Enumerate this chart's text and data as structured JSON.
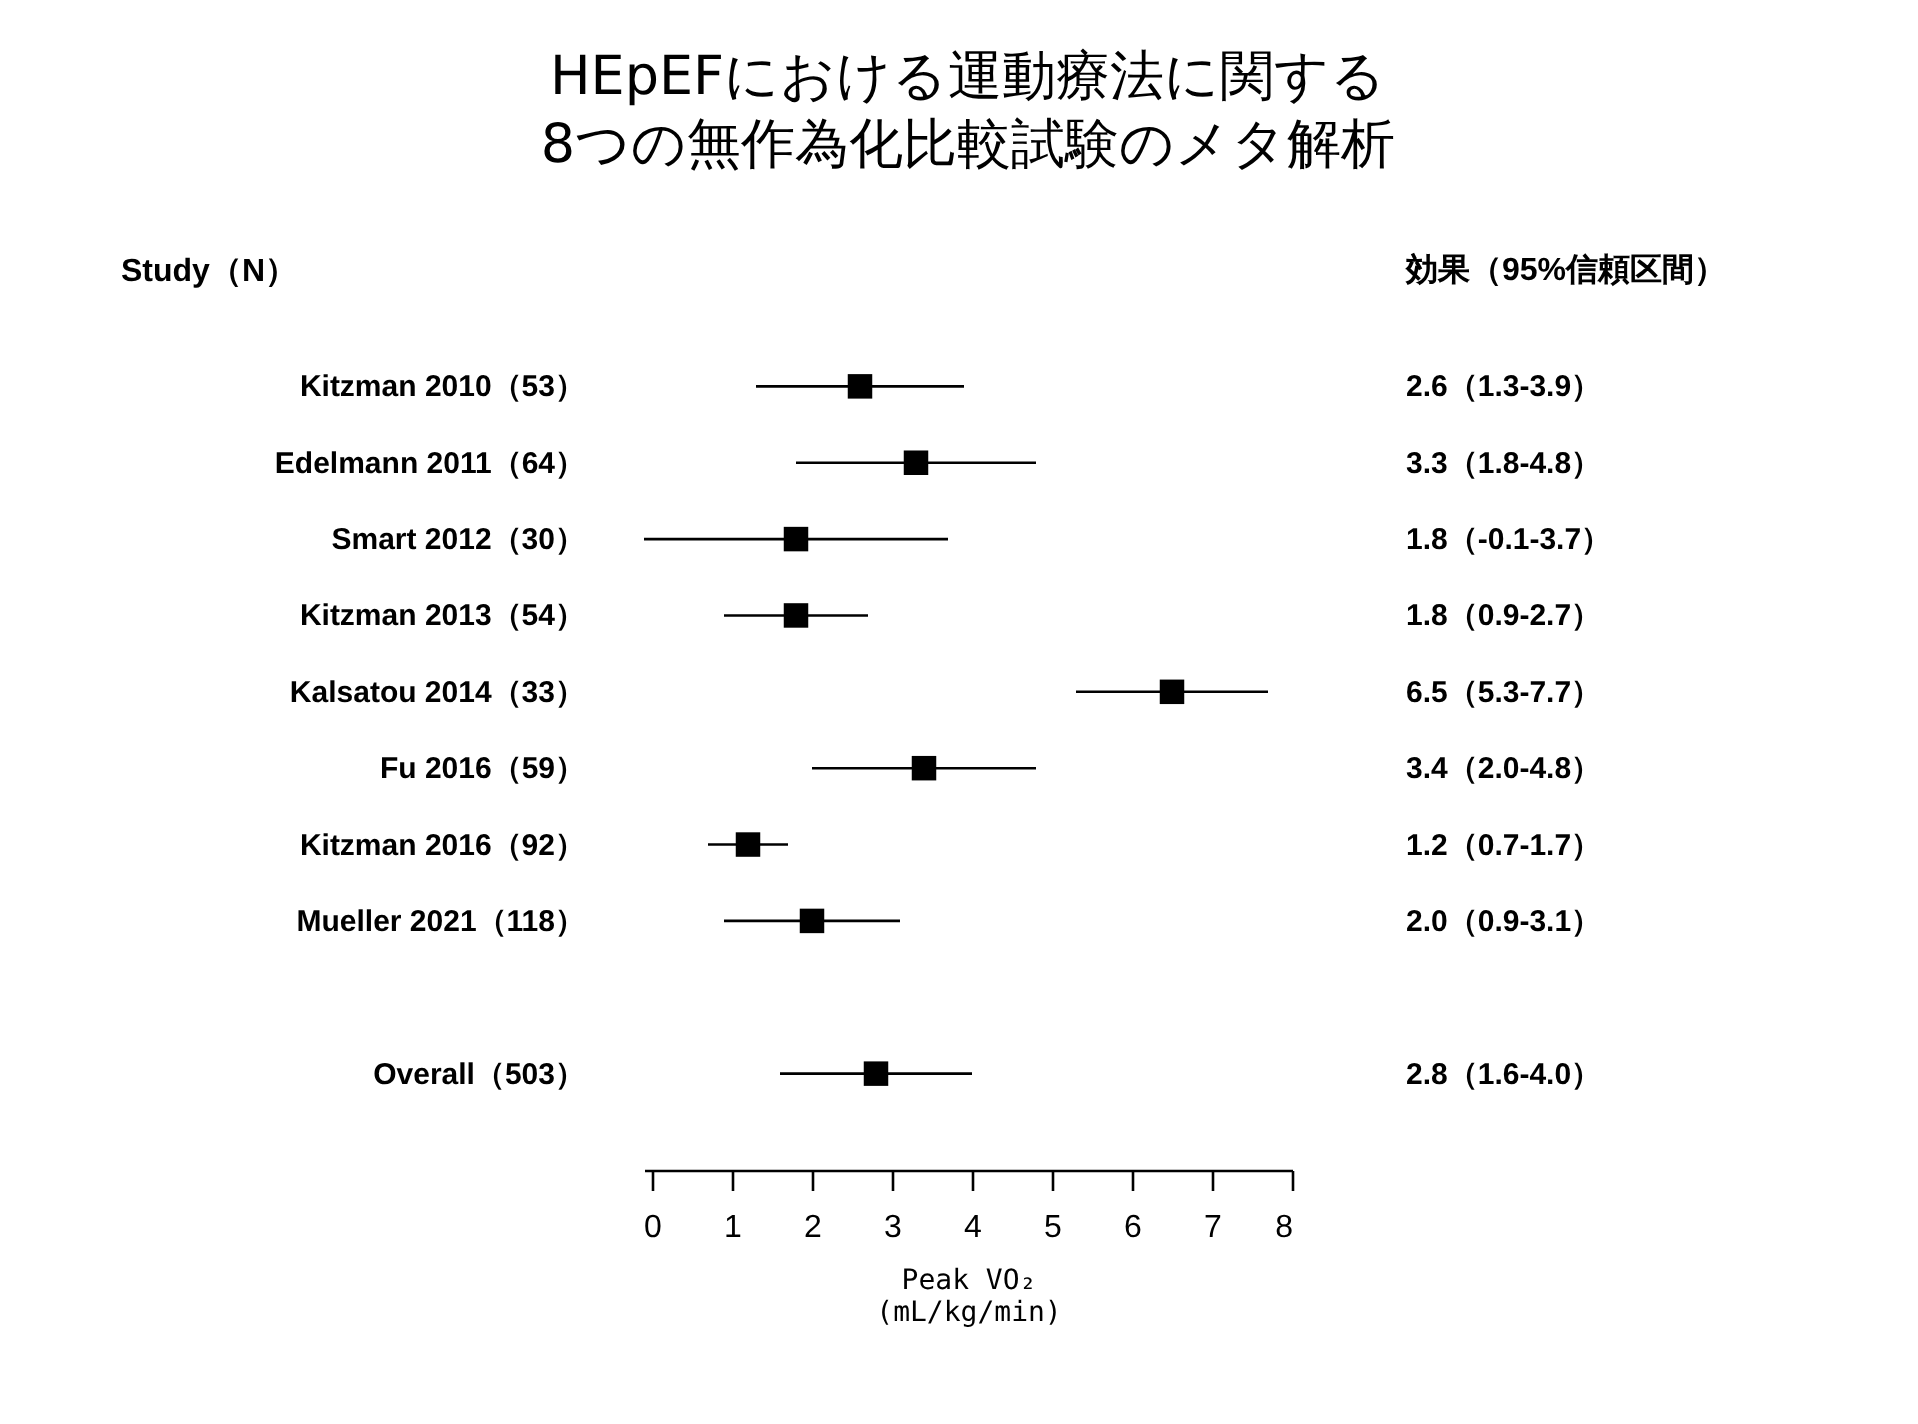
{
  "chart_data": {
    "type": "scatter",
    "orientation": "horizontal",
    "title": "HEpEFにおける運動療法に関する\n8つの無作為化比較試験のメタ解析",
    "xlabel": "Peak VO₂\n(mL/kg/min)",
    "ylabel": "Study（N）",
    "annotations": [
      "効果（95%信頼区間）"
    ],
    "categories": [
      "Kitzman 2010（53）",
      "Edelmann 2011（64）",
      "Smart 2012（30）",
      "Kitzman 2013（54）",
      "Kalsatou 2014（33）",
      "Fu 2016（59）",
      "Kitzman 2016（92）",
      "Mueller 2021（118）",
      null,
      "Overall（503）"
    ],
    "series": [
      {
        "color": "#000000",
        "values": [
          2.6,
          3.3,
          1.8,
          1.8,
          6.5,
          3.4,
          1.2,
          2.0,
          null,
          2.8
        ],
        "errors": [
          [
            1.3,
            3.9
          ],
          [
            1.8,
            4.8
          ],
          [
            -0.1,
            3.7
          ],
          [
            0.9,
            2.7
          ],
          [
            5.3,
            7.7
          ],
          [
            2.0,
            4.8
          ],
          [
            0.7,
            1.7
          ],
          [
            0.9,
            3.1
          ],
          null,
          [
            1.6,
            4.0
          ]
        ],
        "value_labels": [
          "2.6（1.3-3.9）",
          "3.3（1.8-4.8）",
          "1.8（-0.1-3.7）",
          "1.8（0.9-2.7）",
          "6.5（5.3-7.7）",
          "3.4（2.0-4.8）",
          "1.2（0.7-1.7）",
          "2.0（0.9-3.1）",
          null,
          "2.8（1.6-4.0）"
        ]
      }
    ],
    "xlim": [
      -0.1,
      8
    ],
    "xticks": [
      0,
      1,
      2,
      3,
      4,
      5,
      6,
      7,
      8
    ],
    "marker": "square",
    "grid": false
  }
}
